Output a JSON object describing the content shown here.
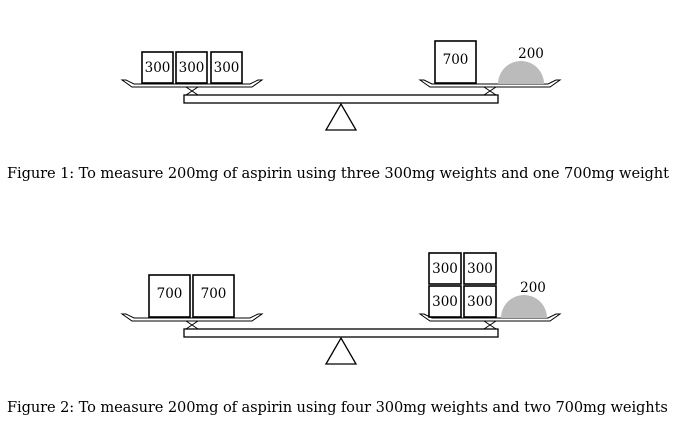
{
  "figures": [
    {
      "left_pan": [
        "300",
        "300",
        "300"
      ],
      "right_pan": [
        "700"
      ],
      "aspirin_label": "200",
      "caption": "Figure 1:  To measure 200mg of aspirin using three 300mg weights and one 700mg weight"
    },
    {
      "left_pan": [
        "700",
        "700"
      ],
      "right_pan": [
        "300",
        "300",
        "300",
        "300"
      ],
      "aspirin_label": "200",
      "caption": "Figure 2:  To measure 200mg of aspirin using four 300mg weights and two 700mg weights"
    }
  ],
  "colors": {
    "aspirin_fill": "#bbbbbb",
    "stroke": "#000000"
  }
}
